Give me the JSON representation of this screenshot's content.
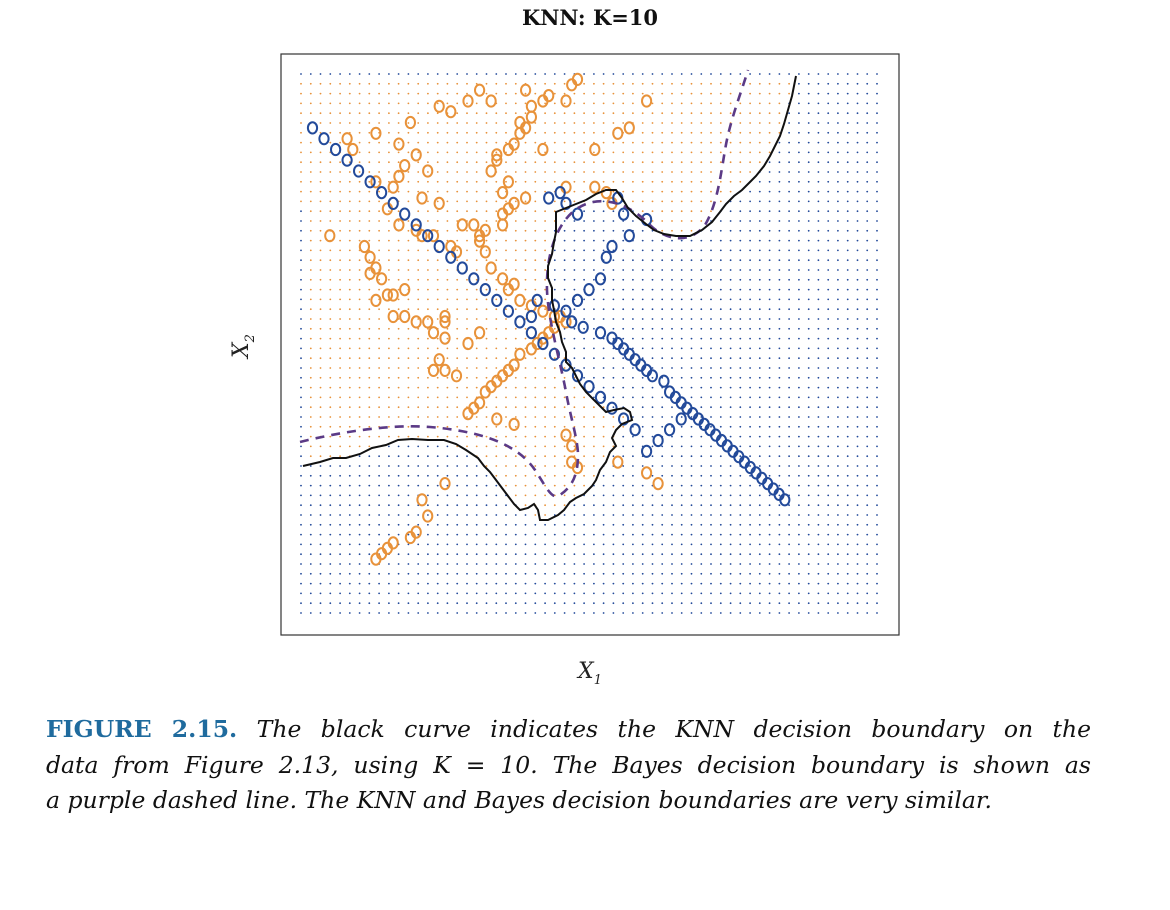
{
  "chart_data": {
    "type": "scatter",
    "title": "KNN: K=10",
    "xlabel": "X",
    "xlabel_sub": "1",
    "ylabel": "X",
    "ylabel_sub": "2",
    "xlim": [
      0,
      100
    ],
    "ylim": [
      0,
      100
    ],
    "grid": "dot lattice shaded by predicted class",
    "colors": {
      "class_orange": "#e8923a",
      "class_blue": "#234a9a",
      "knn_boundary": "#111111",
      "bayes_boundary": "#5b3a86"
    },
    "series": [
      {
        "class": "orange",
        "color": "#e8923a",
        "points": [
          [
            5,
            70
          ],
          [
            11,
            68
          ],
          [
            12,
            66
          ],
          [
            13,
            64
          ],
          [
            12,
            63
          ],
          [
            14,
            62
          ],
          [
            13,
            58
          ],
          [
            15,
            59
          ],
          [
            16,
            59
          ],
          [
            18,
            60
          ],
          [
            16,
            55
          ],
          [
            18,
            55
          ],
          [
            20,
            54
          ],
          [
            25,
            54
          ],
          [
            22,
            54
          ],
          [
            23,
            52
          ],
          [
            25,
            55
          ],
          [
            25,
            51
          ],
          [
            24,
            47
          ],
          [
            23,
            45
          ],
          [
            25,
            45
          ],
          [
            27,
            44
          ],
          [
            29,
            50
          ],
          [
            31,
            52
          ],
          [
            27,
            67
          ],
          [
            31,
            70
          ],
          [
            32,
            71
          ],
          [
            35,
            72
          ],
          [
            35,
            74
          ],
          [
            36,
            75
          ],
          [
            37,
            76
          ],
          [
            39,
            77
          ],
          [
            35,
            78
          ],
          [
            36,
            80
          ],
          [
            34,
            84
          ],
          [
            33,
            82
          ],
          [
            34,
            85
          ],
          [
            36,
            86
          ],
          [
            37,
            87
          ],
          [
            38,
            89
          ],
          [
            39,
            90
          ],
          [
            38,
            91
          ],
          [
            40,
            92
          ],
          [
            42,
            86
          ],
          [
            46,
            79
          ],
          [
            51,
            79
          ],
          [
            53,
            78
          ],
          [
            54,
            76
          ],
          [
            51,
            86
          ],
          [
            55,
            89
          ],
          [
            60,
            95
          ],
          [
            57,
            90
          ],
          [
            46,
            95
          ],
          [
            42,
            95
          ],
          [
            39,
            97
          ],
          [
            47,
            98
          ],
          [
            48,
            99
          ],
          [
            43,
            96
          ],
          [
            40,
            94
          ],
          [
            33,
            95
          ],
          [
            31,
            97
          ],
          [
            29,
            95
          ],
          [
            24,
            94
          ],
          [
            26,
            93
          ],
          [
            19,
            91
          ],
          [
            13,
            89
          ],
          [
            8,
            88
          ],
          [
            9,
            86
          ],
          [
            17,
            87
          ],
          [
            20,
            85
          ],
          [
            18,
            83
          ],
          [
            22,
            82
          ],
          [
            17,
            81
          ],
          [
            13,
            80
          ],
          [
            16,
            79
          ],
          [
            21,
            77
          ],
          [
            24,
            76
          ],
          [
            28,
            72
          ],
          [
            30,
            72
          ],
          [
            31,
            69
          ],
          [
            32,
            67
          ],
          [
            33,
            64
          ],
          [
            35,
            62
          ],
          [
            36,
            60
          ],
          [
            38,
            58
          ],
          [
            40,
            57
          ],
          [
            42,
            56
          ],
          [
            44,
            55
          ],
          [
            45,
            55
          ],
          [
            46,
            54
          ],
          [
            44,
            53
          ],
          [
            43,
            52
          ],
          [
            42,
            51
          ],
          [
            41,
            50
          ],
          [
            40,
            49
          ],
          [
            38,
            48
          ],
          [
            37,
            46
          ],
          [
            36,
            45
          ],
          [
            35,
            44
          ],
          [
            34,
            43
          ],
          [
            33,
            42
          ],
          [
            32,
            41
          ],
          [
            31,
            39
          ],
          [
            30,
            38
          ],
          [
            29,
            37
          ],
          [
            34,
            36
          ],
          [
            37,
            35
          ],
          [
            46,
            33
          ],
          [
            47,
            31
          ],
          [
            47,
            28
          ],
          [
            48,
            27
          ],
          [
            55,
            28
          ],
          [
            60,
            26
          ],
          [
            62,
            24
          ],
          [
            25,
            24
          ],
          [
            21,
            21
          ],
          [
            22,
            18
          ],
          [
            20,
            15
          ],
          [
            19,
            14
          ],
          [
            16,
            13
          ],
          [
            15,
            12
          ],
          [
            14,
            11
          ],
          [
            13,
            10
          ],
          [
            37,
            61
          ],
          [
            20,
            71
          ],
          [
            21,
            70
          ],
          [
            23,
            70
          ],
          [
            26,
            68
          ],
          [
            17,
            72
          ],
          [
            15,
            75
          ]
        ]
      },
      {
        "class": "blue",
        "color": "#234a9a",
        "points": [
          [
            43,
            77
          ],
          [
            45,
            78
          ],
          [
            46,
            76
          ],
          [
            48,
            74
          ],
          [
            55,
            77
          ],
          [
            56,
            74
          ],
          [
            60,
            73
          ],
          [
            57,
            70
          ],
          [
            54,
            68
          ],
          [
            53,
            66
          ],
          [
            52,
            62
          ],
          [
            50,
            60
          ],
          [
            48,
            58
          ],
          [
            46,
            56
          ],
          [
            44,
            57
          ],
          [
            41,
            58
          ],
          [
            40,
            55
          ],
          [
            47,
            54
          ],
          [
            49,
            53
          ],
          [
            52,
            52
          ],
          [
            54,
            51
          ],
          [
            55,
            50
          ],
          [
            56,
            49
          ],
          [
            57,
            48
          ],
          [
            58,
            47
          ],
          [
            59,
            46
          ],
          [
            60,
            45
          ],
          [
            61,
            44
          ],
          [
            63,
            43
          ],
          [
            64,
            41
          ],
          [
            65,
            40
          ],
          [
            66,
            39
          ],
          [
            67,
            38
          ],
          [
            68,
            37
          ],
          [
            69,
            36
          ],
          [
            70,
            35
          ],
          [
            71,
            34
          ],
          [
            72,
            33
          ],
          [
            73,
            32
          ],
          [
            74,
            31
          ],
          [
            75,
            30
          ],
          [
            76,
            29
          ],
          [
            77,
            28
          ],
          [
            78,
            27
          ],
          [
            79,
            26
          ],
          [
            80,
            25
          ],
          [
            81,
            24
          ],
          [
            82,
            23
          ],
          [
            83,
            22
          ],
          [
            84,
            21
          ],
          [
            60,
            30
          ],
          [
            62,
            32
          ],
          [
            64,
            34
          ],
          [
            66,
            36
          ],
          [
            58,
            34
          ],
          [
            56,
            36
          ],
          [
            54,
            38
          ],
          [
            52,
            40
          ],
          [
            50,
            42
          ],
          [
            48,
            44
          ],
          [
            46,
            46
          ],
          [
            44,
            48
          ],
          [
            42,
            50
          ],
          [
            40,
            52
          ],
          [
            38,
            54
          ],
          [
            36,
            56
          ],
          [
            34,
            58
          ],
          [
            32,
            60
          ],
          [
            30,
            62
          ],
          [
            28,
            64
          ],
          [
            26,
            66
          ],
          [
            24,
            68
          ],
          [
            22,
            70
          ],
          [
            20,
            72
          ],
          [
            18,
            74
          ],
          [
            16,
            76
          ],
          [
            14,
            78
          ],
          [
            12,
            80
          ],
          [
            10,
            82
          ],
          [
            8,
            84
          ],
          [
            6,
            86
          ],
          [
            4,
            88
          ],
          [
            2,
            90
          ]
        ]
      }
    ],
    "knn_boundary": {
      "label": "",
      "style": "solid",
      "color": "#111111"
    },
    "bayes_boundary": {
      "label": "",
      "style": "dashed",
      "color": "#5b3a86"
    }
  },
  "caption": {
    "figure_label": "FIGURE 2.15.",
    "line1": "The black curve indicates the KNN decision boundary on the",
    "line2": "data from Figure 2.13, using K = 10. The Bayes decision boundary is shown as",
    "line3": "a purple dashed line. The KNN and Bayes decision boundaries are very similar."
  }
}
